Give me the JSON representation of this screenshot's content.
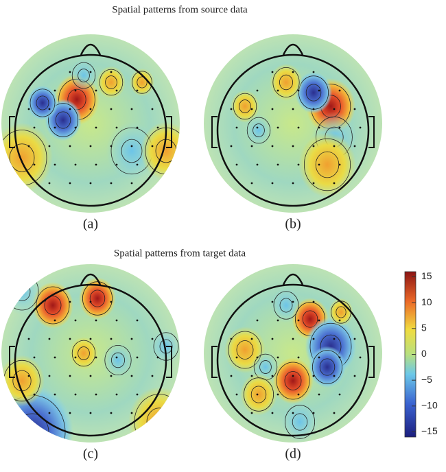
{
  "sections": [
    {
      "title": "Spatial patterns from source data",
      "panels": [
        "(a)",
        "(b)"
      ]
    },
    {
      "title": "Spatial patterns from target data",
      "panels": [
        "(c)",
        "(d)"
      ]
    }
  ],
  "colorbar": {
    "lim": [
      -16,
      16
    ],
    "ticks": [
      15,
      10,
      5,
      0,
      {
        "value": -5,
        "label": "−5"
      },
      {
        "value": -10,
        "label": "−10"
      },
      {
        "value": -15,
        "label": "−15"
      }
    ]
  }
}
